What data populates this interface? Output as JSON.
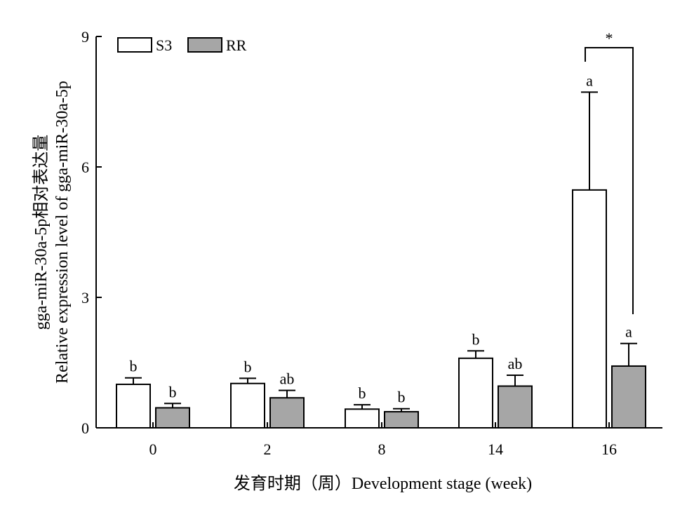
{
  "chart_data": {
    "type": "bar",
    "categories": [
      "0",
      "2",
      "8",
      "14",
      "16"
    ],
    "series": [
      {
        "name": "S3",
        "values": [
          1.0,
          1.02,
          0.43,
          1.6,
          5.47
        ],
        "errors": [
          0.15,
          0.12,
          0.1,
          0.17,
          2.25
        ],
        "letters": [
          "b",
          "b",
          "b",
          "b",
          "a"
        ],
        "color": "#ffffff"
      },
      {
        "name": "RR",
        "values": [
          0.46,
          0.69,
          0.37,
          0.96,
          1.42
        ],
        "errors": [
          0.1,
          0.17,
          0.07,
          0.25,
          0.52
        ],
        "letters": [
          "b",
          "ab",
          "b",
          "ab",
          "a"
        ],
        "color": "#a6a6a6"
      }
    ],
    "xlabel": "发育时期（周）Development stage (week)",
    "ylabel_line1": "gga-miR-30a-5p相对表达量",
    "ylabel_line2": "Relative expression level of gga-miR-30a-5p",
    "ylim": [
      0,
      9
    ],
    "yticks": [
      "0",
      "3",
      "6",
      "9"
    ],
    "legend_position": "top-left",
    "significance": {
      "category": "16",
      "label": "*"
    }
  }
}
